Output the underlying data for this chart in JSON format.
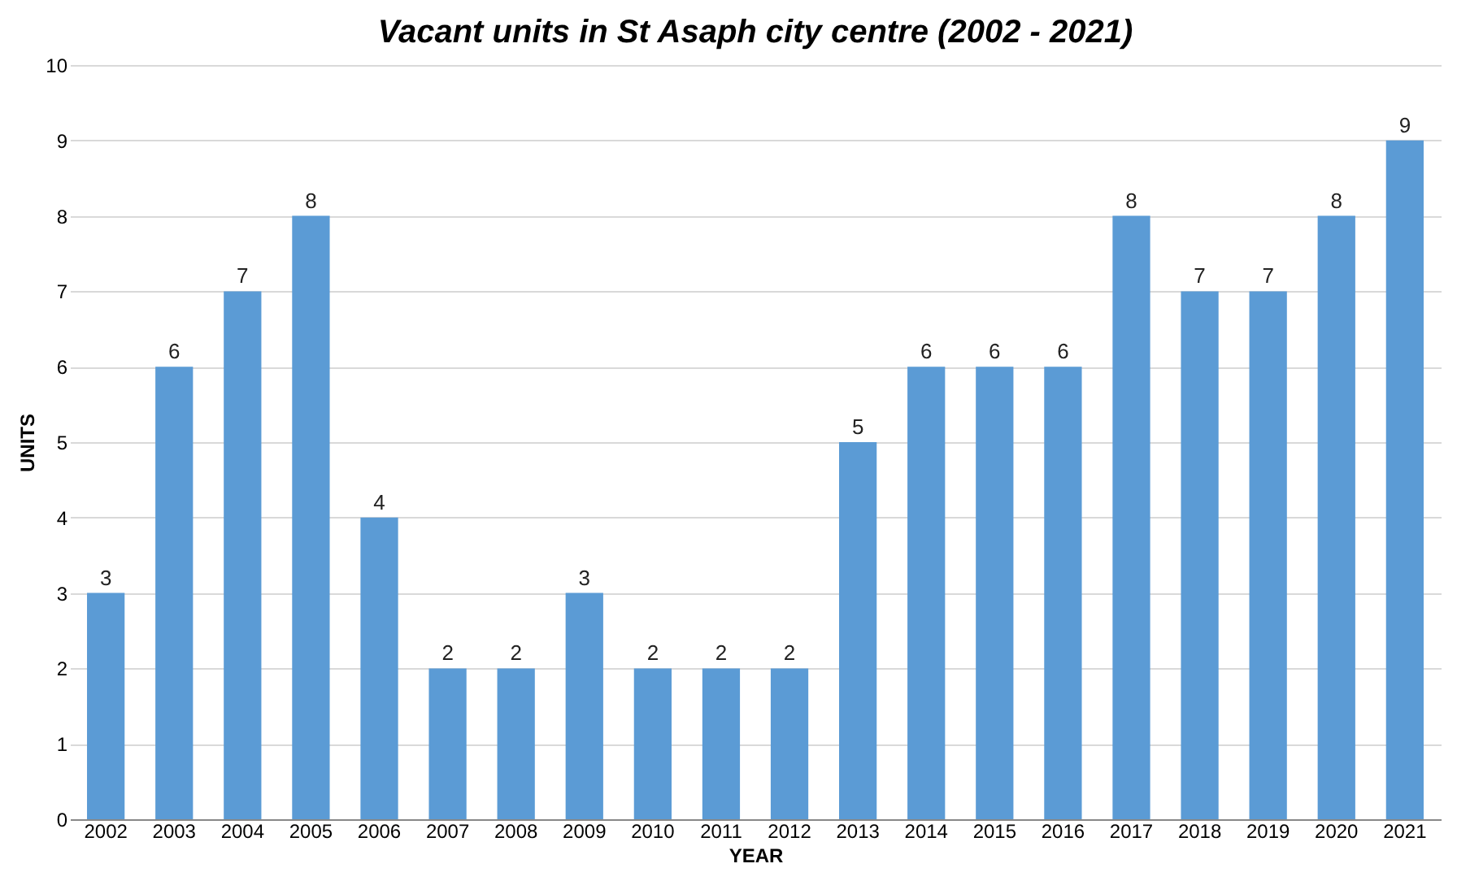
{
  "chart_data": {
    "type": "bar",
    "title": "Vacant units in St Asaph city centre (2002 - 2021)",
    "xlabel": "YEAR",
    "ylabel": "UNITS",
    "categories": [
      "2002",
      "2003",
      "2004",
      "2005",
      "2006",
      "2007",
      "2008",
      "2009",
      "2010",
      "2011",
      "2012",
      "2013",
      "2014",
      "2015",
      "2016",
      "2017",
      "2018",
      "2019",
      "2020",
      "2021"
    ],
    "values": [
      3,
      6,
      7,
      8,
      4,
      2,
      2,
      3,
      2,
      2,
      2,
      5,
      6,
      6,
      6,
      8,
      7,
      7,
      8,
      9
    ],
    "color": "#5b9bd5",
    "ylim": [
      0,
      10
    ],
    "yticks": [
      0,
      1,
      2,
      3,
      4,
      5,
      6,
      7,
      8,
      9,
      10
    ],
    "grid": "y",
    "data_labels": true
  }
}
